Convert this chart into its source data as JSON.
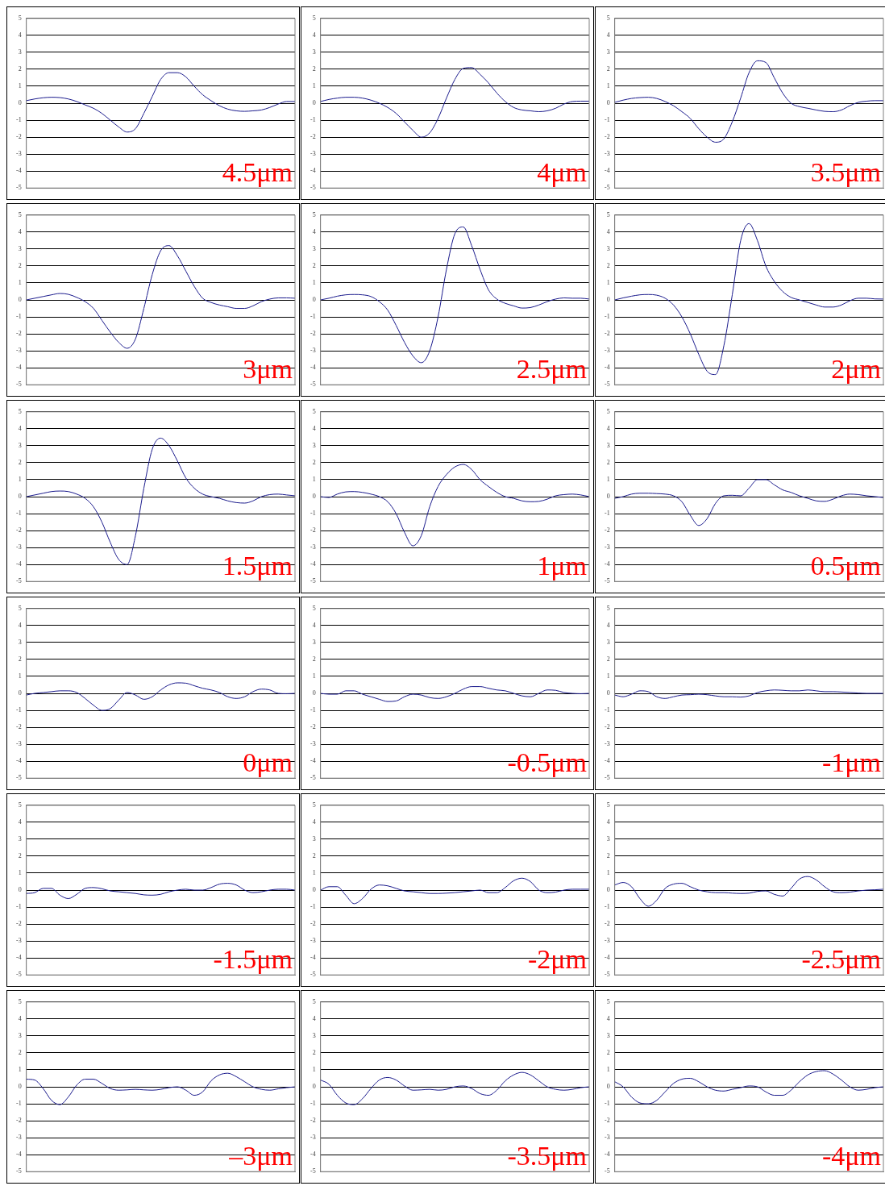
{
  "chart_data": [
    {
      "type": "line",
      "categories": [
        null,
        null,
        null,
        null,
        null,
        null,
        null,
        null,
        null,
        null,
        null,
        null,
        null,
        null,
        null,
        null,
        null,
        null,
        null,
        null,
        null,
        null,
        null,
        null,
        null,
        null,
        null,
        null,
        null,
        null,
        null,
        null,
        null
      ],
      "values": [
        0.15,
        0.25,
        0.32,
        0.35,
        0.33,
        0.25,
        0.1,
        -0.1,
        -0.3,
        -0.6,
        -1.0,
        -1.4,
        -1.7,
        -1.5,
        -0.6,
        0.4,
        1.4,
        1.8,
        1.8,
        1.55,
        1.0,
        0.5,
        0.15,
        -0.15,
        -0.35,
        -0.45,
        -0.48,
        -0.45,
        -0.4,
        -0.25,
        -0.05,
        0.1,
        0.1
      ],
      "color": "#1a1a8c",
      "ylim": [
        -5,
        5
      ],
      "yticks": [
        -5,
        -4,
        -3,
        -2,
        -1,
        0,
        1,
        2,
        3,
        4,
        5
      ],
      "grid": "y",
      "tick_labels": "y",
      "annotations": [
        "4.5μm"
      ]
    },
    {
      "type": "line",
      "categories": [
        null,
        null,
        null,
        null,
        null,
        null,
        null,
        null,
        null,
        null,
        null,
        null,
        null,
        null,
        null,
        null,
        null,
        null,
        null,
        null,
        null,
        null,
        null,
        null,
        null,
        null,
        null,
        null,
        null,
        null,
        null,
        null,
        null
      ],
      "values": [
        0.1,
        0.22,
        0.3,
        0.35,
        0.35,
        0.3,
        0.18,
        0,
        -0.25,
        -0.6,
        -1.1,
        -1.6,
        -2.0,
        -1.75,
        -0.9,
        0.3,
        1.4,
        2.05,
        2.1,
        1.7,
        1.2,
        0.6,
        0.1,
        -0.25,
        -0.4,
        -0.45,
        -0.5,
        -0.45,
        -0.3,
        -0.05,
        0.1,
        0.12,
        0.12
      ],
      "color": "#1a1a8c",
      "ylim": [
        -5,
        5
      ],
      "yticks": [
        -5,
        -4,
        -3,
        -2,
        -1,
        0,
        1,
        2,
        3,
        4,
        5
      ],
      "grid": "y",
      "tick_labels": "y",
      "annotations": [
        "4μm"
      ]
    },
    {
      "type": "line",
      "categories": [
        null,
        null,
        null,
        null,
        null,
        null,
        null,
        null,
        null,
        null,
        null,
        null,
        null,
        null,
        null,
        null,
        null,
        null,
        null,
        null,
        null,
        null,
        null,
        null,
        null,
        null,
        null,
        null,
        null,
        null,
        null,
        null,
        null
      ],
      "values": [
        0.05,
        0.18,
        0.28,
        0.33,
        0.35,
        0.28,
        0.1,
        -0.15,
        -0.5,
        -0.9,
        -1.5,
        -2.0,
        -2.3,
        -2.1,
        -1.1,
        0.3,
        1.8,
        2.5,
        2.4,
        1.5,
        0.6,
        0.0,
        -0.2,
        -0.3,
        -0.4,
        -0.48,
        -0.5,
        -0.4,
        -0.15,
        0.05,
        0.12,
        0.15,
        0.15
      ],
      "color": "#1a1a8c",
      "ylim": [
        -5,
        5
      ],
      "yticks": [
        -5,
        -4,
        -3,
        -2,
        -1,
        0,
        1,
        2,
        3,
        4,
        5
      ],
      "grid": "y",
      "tick_labels": "y",
      "annotations": [
        "3.5μm"
      ]
    },
    {
      "type": "line",
      "categories": [
        null,
        null,
        null,
        null,
        null,
        null,
        null,
        null,
        null,
        null,
        null,
        null,
        null,
        null,
        null,
        null,
        null,
        null,
        null,
        null,
        null,
        null,
        null,
        null,
        null,
        null,
        null,
        null,
        null,
        null,
        null,
        null,
        null
      ],
      "values": [
        0.0,
        0.1,
        0.2,
        0.3,
        0.38,
        0.33,
        0.15,
        -0.1,
        -0.5,
        -1.2,
        -1.9,
        -2.5,
        -2.85,
        -2.3,
        -0.5,
        1.5,
        2.9,
        3.2,
        2.6,
        1.7,
        0.8,
        0.1,
        -0.15,
        -0.3,
        -0.4,
        -0.5,
        -0.5,
        -0.35,
        -0.1,
        0.05,
        0.12,
        0.12,
        0.1
      ],
      "color": "#1a1a8c",
      "ylim": [
        -5,
        5
      ],
      "yticks": [
        -5,
        -4,
        -3,
        -2,
        -1,
        0,
        1,
        2,
        3,
        4,
        5
      ],
      "grid": "y",
      "tick_labels": "y",
      "annotations": [
        "3μm"
      ]
    },
    {
      "type": "line",
      "categories": [
        null,
        null,
        null,
        null,
        null,
        null,
        null,
        null,
        null,
        null,
        null,
        null,
        null,
        null,
        null,
        null,
        null,
        null,
        null,
        null,
        null,
        null,
        null,
        null,
        null,
        null,
        null,
        null,
        null,
        null,
        null,
        null,
        null
      ],
      "values": [
        0.0,
        0.1,
        0.22,
        0.3,
        0.32,
        0.3,
        0.2,
        -0.1,
        -0.6,
        -1.5,
        -2.5,
        -3.3,
        -3.7,
        -3.0,
        -1.0,
        1.8,
        3.9,
        4.3,
        3.2,
        1.8,
        0.6,
        0.05,
        -0.2,
        -0.35,
        -0.48,
        -0.45,
        -0.3,
        -0.1,
        0.05,
        0.12,
        0.1,
        0.1,
        0.05
      ],
      "color": "#1a1a8c",
      "ylim": [
        -5,
        5
      ],
      "yticks": [
        -5,
        -4,
        -3,
        -2,
        -1,
        0,
        1,
        2,
        3,
        4,
        5
      ],
      "grid": "y",
      "tick_labels": "y",
      "annotations": [
        "2.5μm"
      ]
    },
    {
      "type": "line",
      "categories": [
        null,
        null,
        null,
        null,
        null,
        null,
        null,
        null,
        null,
        null,
        null,
        null,
        null,
        null,
        null,
        null,
        null,
        null,
        null,
        null,
        null,
        null,
        null,
        null,
        null,
        null,
        null,
        null,
        null,
        null,
        null,
        null,
        null
      ],
      "values": [
        0.0,
        0.12,
        0.22,
        0.3,
        0.32,
        0.28,
        0.1,
        -0.3,
        -1.0,
        -2.0,
        -3.2,
        -4.2,
        -4.4,
        -2.7,
        0.3,
        3.5,
        4.5,
        3.5,
        2.0,
        1.1,
        0.5,
        0.15,
        0.0,
        -0.15,
        -0.3,
        -0.42,
        -0.42,
        -0.3,
        -0.05,
        0.1,
        0.1,
        0.06,
        0.05
      ],
      "color": "#1a1a8c",
      "ylim": [
        -5,
        5
      ],
      "yticks": [
        -5,
        -4,
        -3,
        -2,
        -1,
        0,
        1,
        2,
        3,
        4,
        5
      ],
      "grid": "y",
      "tick_labels": "y",
      "annotations": [
        "2μm"
      ]
    },
    {
      "type": "line",
      "categories": [
        null,
        null,
        null,
        null,
        null,
        null,
        null,
        null,
        null,
        null,
        null,
        null,
        null,
        null,
        null,
        null,
        null,
        null,
        null,
        null,
        null,
        null,
        null,
        null,
        null,
        null,
        null,
        null,
        null,
        null,
        null,
        null,
        null
      ],
      "values": [
        0.0,
        0.1,
        0.2,
        0.3,
        0.33,
        0.3,
        0.15,
        -0.1,
        -0.6,
        -1.5,
        -2.7,
        -3.7,
        -4.0,
        -2.3,
        0.5,
        2.8,
        3.45,
        3.0,
        2.1,
        1.1,
        0.5,
        0.15,
        0.0,
        -0.1,
        -0.25,
        -0.35,
        -0.38,
        -0.25,
        0.0,
        0.12,
        0.15,
        0.1,
        0.05
      ],
      "color": "#1a1a8c",
      "ylim": [
        -5,
        5
      ],
      "yticks": [
        -5,
        -4,
        -3,
        -2,
        -1,
        0,
        1,
        2,
        3,
        4,
        5
      ],
      "grid": "y",
      "tick_labels": "y",
      "annotations": [
        "1.5μm"
      ]
    },
    {
      "type": "line",
      "categories": [
        null,
        null,
        null,
        null,
        null,
        null,
        null,
        null,
        null,
        null,
        null,
        null,
        null,
        null,
        null,
        null,
        null,
        null,
        null,
        null,
        null,
        null,
        null,
        null,
        null,
        null,
        null,
        null,
        null,
        null,
        null,
        null,
        null
      ],
      "values": [
        0.0,
        -0.05,
        0.15,
        0.28,
        0.3,
        0.25,
        0.15,
        0.0,
        -0.3,
        -1.0,
        -2.1,
        -2.9,
        -2.3,
        -0.6,
        0.6,
        1.3,
        1.75,
        1.9,
        1.6,
        1.0,
        0.6,
        0.25,
        0.0,
        -0.1,
        -0.25,
        -0.3,
        -0.28,
        -0.15,
        0.05,
        0.12,
        0.15,
        0.1,
        0.0
      ],
      "color": "#1a1a8c",
      "ylim": [
        -5,
        5
      ],
      "yticks": [
        -5,
        -4,
        -3,
        -2,
        -1,
        0,
        1,
        2,
        3,
        4,
        5
      ],
      "grid": "y",
      "tick_labels": "y",
      "annotations": [
        "1μm"
      ]
    },
    {
      "type": "line",
      "categories": [
        null,
        null,
        null,
        null,
        null,
        null,
        null,
        null,
        null,
        null,
        null,
        null,
        null,
        null,
        null,
        null,
        null,
        null,
        null,
        null,
        null,
        null,
        null,
        null,
        null,
        null,
        null,
        null,
        null,
        null,
        null,
        null,
        null
      ],
      "values": [
        -0.1,
        0.0,
        0.15,
        0.2,
        0.2,
        0.18,
        0.15,
        0.05,
        -0.3,
        -1.1,
        -1.7,
        -1.3,
        -0.4,
        0.05,
        0.08,
        0.05,
        0.5,
        1.0,
        1.0,
        0.7,
        0.4,
        0.25,
        0.05,
        -0.1,
        -0.25,
        -0.28,
        -0.15,
        0.05,
        0.15,
        0.12,
        0.05,
        0.0,
        -0.05
      ],
      "color": "#1a1a8c",
      "ylim": [
        -5,
        5
      ],
      "yticks": [
        -5,
        -4,
        -3,
        -2,
        -1,
        0,
        1,
        2,
        3,
        4,
        5
      ],
      "grid": "y",
      "tick_labels": "y",
      "annotations": [
        "0.5μm"
      ]
    },
    {
      "type": "line",
      "categories": [
        null,
        null,
        null,
        null,
        null,
        null,
        null,
        null,
        null,
        null,
        null,
        null,
        null,
        null,
        null,
        null,
        null,
        null,
        null,
        null,
        null,
        null,
        null,
        null,
        null,
        null,
        null,
        null,
        null,
        null,
        null,
        null,
        null
      ],
      "values": [
        -0.1,
        0.0,
        0.05,
        0.1,
        0.15,
        0.15,
        0.05,
        -0.3,
        -0.7,
        -1.0,
        -0.9,
        -0.4,
        0.05,
        -0.1,
        -0.35,
        -0.2,
        0.2,
        0.5,
        0.62,
        0.6,
        0.45,
        0.3,
        0.2,
        0.05,
        -0.2,
        -0.3,
        -0.2,
        0.1,
        0.25,
        0.2,
        0.0,
        -0.02,
        0.0
      ],
      "color": "#1a1a8c",
      "ylim": [
        -5,
        5
      ],
      "yticks": [
        -5,
        -4,
        -3,
        -2,
        -1,
        0,
        1,
        2,
        3,
        4,
        5
      ],
      "grid": "y",
      "tick_labels": "y",
      "annotations": [
        "0μm"
      ]
    },
    {
      "type": "line",
      "categories": [
        null,
        null,
        null,
        null,
        null,
        null,
        null,
        null,
        null,
        null,
        null,
        null,
        null,
        null,
        null,
        null,
        null,
        null,
        null,
        null,
        null,
        null,
        null,
        null,
        null,
        null,
        null,
        null,
        null,
        null,
        null,
        null,
        null
      ],
      "values": [
        0.0,
        -0.05,
        -0.05,
        0.15,
        0.15,
        -0.05,
        -0.2,
        -0.35,
        -0.48,
        -0.45,
        -0.2,
        -0.05,
        -0.1,
        -0.25,
        -0.3,
        -0.2,
        0.0,
        0.25,
        0.4,
        0.4,
        0.3,
        0.2,
        0.15,
        0.0,
        -0.15,
        -0.2,
        0.0,
        0.2,
        0.18,
        0.05,
        0.0,
        -0.02,
        0.0
      ],
      "color": "#1a1a8c",
      "ylim": [
        -5,
        5
      ],
      "yticks": [
        -5,
        -4,
        -3,
        -2,
        -1,
        0,
        1,
        2,
        3,
        4,
        5
      ],
      "grid": "y",
      "tick_labels": "y",
      "annotations": [
        "-0.5μm"
      ]
    },
    {
      "type": "line",
      "categories": [
        null,
        null,
        null,
        null,
        null,
        null,
        null,
        null,
        null,
        null,
        null,
        null,
        null,
        null,
        null,
        null,
        null,
        null,
        null,
        null,
        null,
        null,
        null,
        null,
        null,
        null,
        null,
        null,
        null,
        null,
        null,
        null,
        null
      ],
      "values": [
        -0.1,
        -0.2,
        -0.05,
        0.15,
        0.1,
        -0.2,
        -0.3,
        -0.2,
        -0.1,
        -0.08,
        -0.05,
        -0.08,
        -0.15,
        -0.2,
        -0.2,
        -0.22,
        -0.15,
        0.05,
        0.15,
        0.2,
        0.18,
        0.15,
        0.15,
        0.2,
        0.15,
        0.1,
        0.1,
        0.08,
        0.05,
        0.02,
        0.0,
        0.0,
        0.0
      ],
      "color": "#1a1a8c",
      "ylim": [
        -5,
        5
      ],
      "yticks": [
        -5,
        -4,
        -3,
        -2,
        -1,
        0,
        1,
        2,
        3,
        4,
        5
      ],
      "grid": "y",
      "tick_labels": "y",
      "annotations": [
        "-1μm"
      ]
    },
    {
      "type": "line",
      "categories": [
        null,
        null,
        null,
        null,
        null,
        null,
        null,
        null,
        null,
        null,
        null,
        null,
        null,
        null,
        null,
        null,
        null,
        null,
        null,
        null,
        null,
        null,
        null,
        null,
        null,
        null,
        null,
        null,
        null,
        null,
        null,
        null,
        null
      ],
      "values": [
        -0.2,
        -0.15,
        0.1,
        0.1,
        -0.3,
        -0.5,
        -0.25,
        0.1,
        0.15,
        0.08,
        -0.05,
        -0.1,
        -0.15,
        -0.2,
        -0.28,
        -0.3,
        -0.25,
        -0.1,
        0.0,
        0.05,
        0.0,
        0.0,
        0.15,
        0.35,
        0.4,
        0.3,
        0.0,
        -0.15,
        -0.1,
        0.0,
        0.05,
        0.05,
        0.0
      ],
      "color": "#1a1a8c",
      "ylim": [
        -5,
        5
      ],
      "yticks": [
        -5,
        -4,
        -3,
        -2,
        -1,
        0,
        1,
        2,
        3,
        4,
        5
      ],
      "grid": "y",
      "tick_labels": "y",
      "annotations": [
        "-1.5μm"
      ]
    },
    {
      "type": "line",
      "categories": [
        null,
        null,
        null,
        null,
        null,
        null,
        null,
        null,
        null,
        null,
        null,
        null,
        null,
        null,
        null,
        null,
        null,
        null,
        null,
        null,
        null,
        null,
        null,
        null,
        null,
        null,
        null,
        null,
        null,
        null,
        null,
        null,
        null
      ],
      "values": [
        0.0,
        0.2,
        0.2,
        -0.3,
        -0.8,
        -0.5,
        0.05,
        0.3,
        0.25,
        0.1,
        -0.05,
        -0.1,
        -0.15,
        -0.2,
        -0.2,
        -0.18,
        -0.15,
        -0.1,
        -0.05,
        0.0,
        -0.15,
        -0.15,
        0.15,
        0.55,
        0.7,
        0.5,
        0.0,
        -0.15,
        -0.12,
        0.0,
        0.05,
        0.05,
        0.05
      ],
      "color": "#1a1a8c",
      "ylim": [
        -5,
        5
      ],
      "yticks": [
        -5,
        -4,
        -3,
        -2,
        -1,
        0,
        1,
        2,
        3,
        4,
        5
      ],
      "grid": "y",
      "tick_labels": "y",
      "annotations": [
        "-2μm"
      ]
    },
    {
      "type": "line",
      "categories": [
        null,
        null,
        null,
        null,
        null,
        null,
        null,
        null,
        null,
        null,
        null,
        null,
        null,
        null,
        null,
        null,
        null,
        null,
        null,
        null,
        null,
        null,
        null,
        null,
        null,
        null,
        null,
        null,
        null,
        null,
        null,
        null,
        null
      ],
      "values": [
        0.3,
        0.45,
        0.2,
        -0.5,
        -0.95,
        -0.6,
        0.1,
        0.35,
        0.4,
        0.2,
        0.0,
        -0.1,
        -0.15,
        -0.15,
        -0.18,
        -0.2,
        -0.18,
        -0.08,
        -0.05,
        -0.25,
        -0.35,
        0.1,
        0.65,
        0.8,
        0.6,
        0.2,
        -0.1,
        -0.15,
        -0.12,
        -0.05,
        0.0,
        0.02,
        0.05
      ],
      "color": "#1a1a8c",
      "ylim": [
        -5,
        5
      ],
      "yticks": [
        -5,
        -4,
        -3,
        -2,
        -1,
        0,
        1,
        2,
        3,
        4,
        5
      ],
      "grid": "y",
      "tick_labels": "y",
      "annotations": [
        "-2.5μm"
      ]
    },
    {
      "type": "line",
      "categories": [
        null,
        null,
        null,
        null,
        null,
        null,
        null,
        null,
        null,
        null,
        null,
        null,
        null,
        null,
        null,
        null,
        null,
        null,
        null,
        null,
        null,
        null,
        null,
        null,
        null,
        null,
        null,
        null,
        null,
        null,
        null,
        null,
        null
      ],
      "values": [
        0.45,
        0.4,
        -0.1,
        -0.8,
        -1.05,
        -0.6,
        0.1,
        0.45,
        0.45,
        0.2,
        -0.1,
        -0.2,
        -0.18,
        -0.15,
        -0.18,
        -0.2,
        -0.15,
        -0.05,
        0.0,
        -0.2,
        -0.5,
        -0.3,
        0.35,
        0.7,
        0.8,
        0.6,
        0.3,
        0.0,
        -0.15,
        -0.2,
        -0.12,
        -0.05,
        0.0
      ],
      "color": "#1a1a8c",
      "ylim": [
        -5,
        5
      ],
      "yticks": [
        -5,
        -4,
        -3,
        -2,
        -1,
        0,
        1,
        2,
        3,
        4,
        5
      ],
      "grid": "y",
      "tick_labels": "y",
      "annotations": [
        "–3μm"
      ]
    },
    {
      "type": "line",
      "categories": [
        null,
        null,
        null,
        null,
        null,
        null,
        null,
        null,
        null,
        null,
        null,
        null,
        null,
        null,
        null,
        null,
        null,
        null,
        null,
        null,
        null,
        null,
        null,
        null,
        null,
        null,
        null,
        null,
        null,
        null,
        null,
        null,
        null
      ],
      "values": [
        0.4,
        0.15,
        -0.5,
        -0.95,
        -1.05,
        -0.7,
        -0.1,
        0.4,
        0.55,
        0.4,
        0.05,
        -0.2,
        -0.18,
        -0.15,
        -0.2,
        -0.15,
        0.0,
        0.05,
        -0.1,
        -0.4,
        -0.5,
        -0.2,
        0.35,
        0.7,
        0.85,
        0.7,
        0.35,
        0.0,
        -0.15,
        -0.2,
        -0.15,
        -0.05,
        0.0
      ],
      "color": "#1a1a8c",
      "ylim": [
        -5,
        5
      ],
      "yticks": [
        -5,
        -4,
        -3,
        -2,
        -1,
        0,
        1,
        2,
        3,
        4,
        5
      ],
      "grid": "y",
      "tick_labels": "y",
      "annotations": [
        "-3.5μm"
      ]
    },
    {
      "type": "line",
      "categories": [
        null,
        null,
        null,
        null,
        null,
        null,
        null,
        null,
        null,
        null,
        null,
        null,
        null,
        null,
        null,
        null,
        null,
        null,
        null,
        null,
        null,
        null,
        null,
        null,
        null,
        null,
        null,
        null,
        null,
        null,
        null,
        null,
        null
      ],
      "values": [
        0.3,
        0.0,
        -0.6,
        -0.95,
        -1.0,
        -0.8,
        -0.3,
        0.2,
        0.45,
        0.5,
        0.3,
        0.0,
        -0.2,
        -0.25,
        -0.15,
        -0.05,
        0.05,
        0.0,
        -0.3,
        -0.5,
        -0.5,
        -0.2,
        0.3,
        0.7,
        0.9,
        0.95,
        0.75,
        0.4,
        0.0,
        -0.2,
        -0.15,
        -0.05,
        0.0
      ],
      "color": "#1a1a8c",
      "ylim": [
        -5,
        5
      ],
      "yticks": [
        -5,
        -4,
        -3,
        -2,
        -1,
        0,
        1,
        2,
        3,
        4,
        5
      ],
      "grid": "y",
      "tick_labels": "y",
      "annotations": [
        "-4μm"
      ]
    }
  ]
}
